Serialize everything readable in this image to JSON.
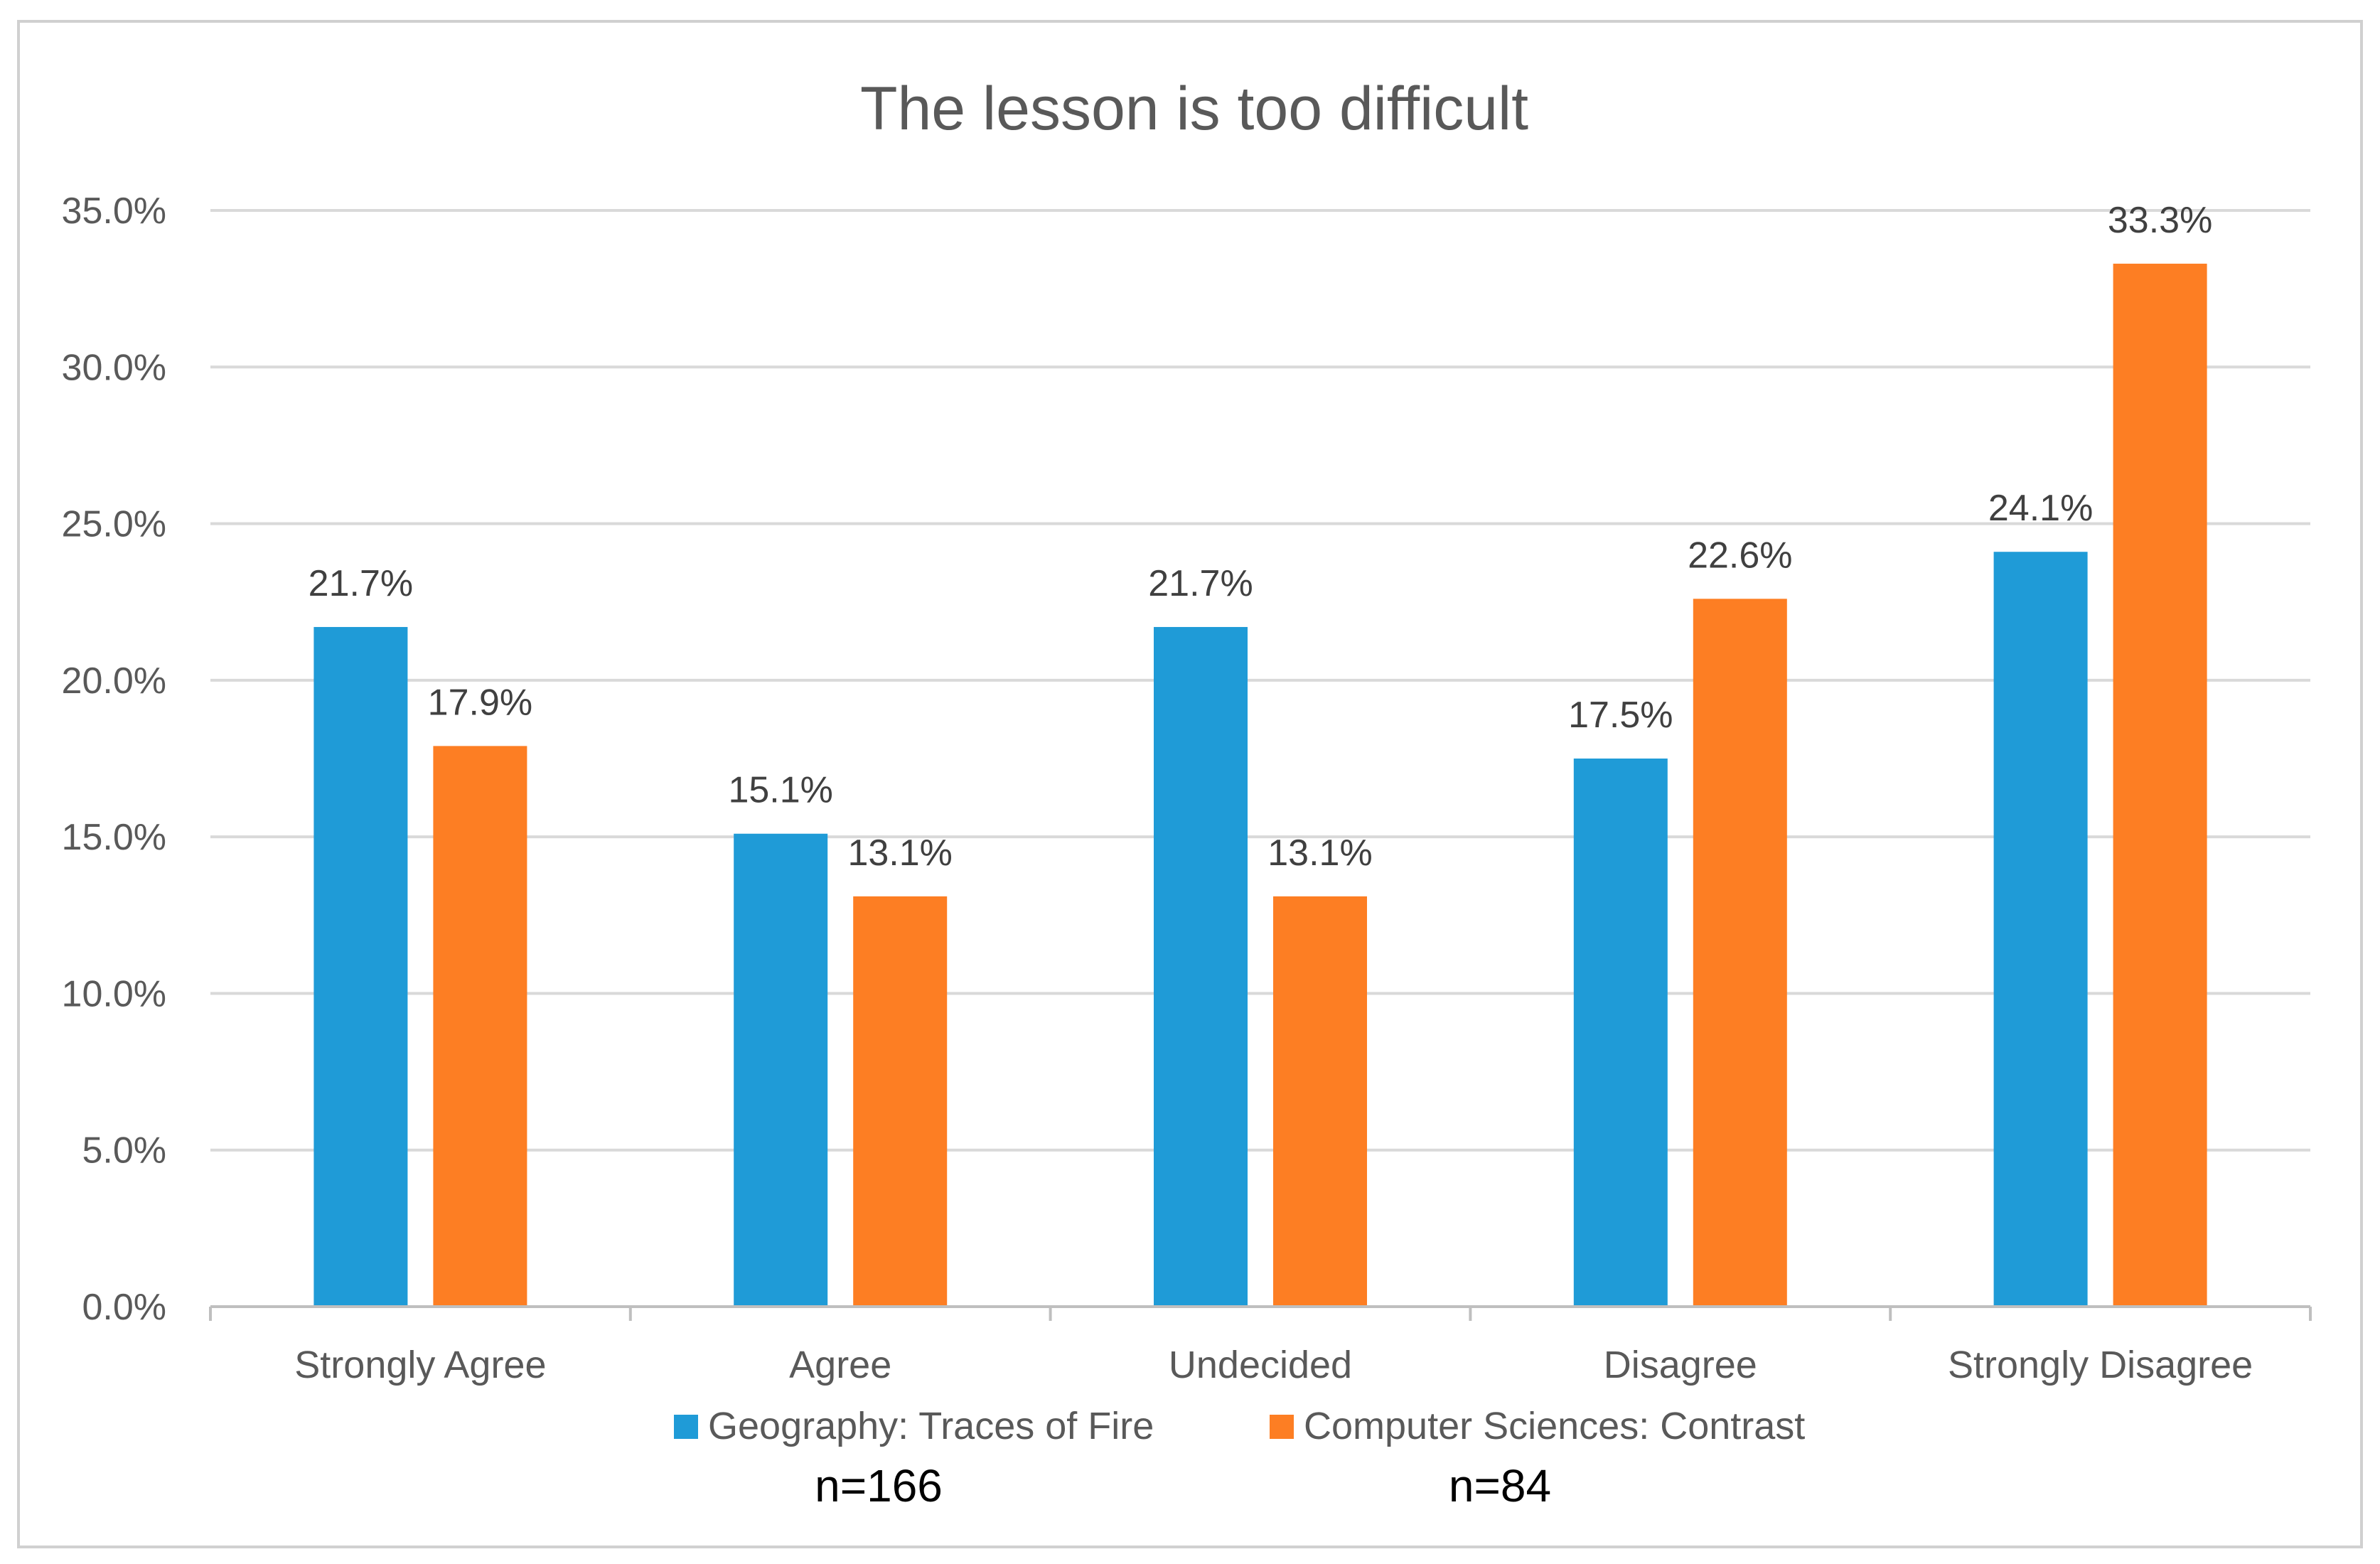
{
  "chart_data": {
    "type": "bar",
    "title": "The lesson is too difficult",
    "categories": [
      "Strongly Agree",
      "Agree",
      "Undecided",
      "Disagree",
      "Strongly Disagree"
    ],
    "series": [
      {
        "name": "Geography: Traces of Fire",
        "color": "#1f9bd7",
        "values": [
          21.7,
          15.1,
          21.7,
          17.5,
          24.1
        ],
        "labels": [
          "21.7%",
          "15.1%",
          "21.7%",
          "17.5%",
          "24.1%"
        ],
        "n_label": "n=166"
      },
      {
        "name": "Computer Sciences: Contrast",
        "color": "#fd7e23",
        "values": [
          17.9,
          13.1,
          13.1,
          22.6,
          33.3
        ],
        "labels": [
          "17.9%",
          "13.1%",
          "13.1%",
          "22.6%",
          "33.3%"
        ],
        "n_label": "n=84"
      }
    ],
    "ylim": [
      0,
      35
    ],
    "yticks": [
      0,
      5,
      10,
      15,
      20,
      25,
      30,
      35
    ],
    "ytick_labels": [
      "0.0%",
      "5.0%",
      "10.0%",
      "15.0%",
      "20.0%",
      "25.0%",
      "30.0%",
      "35.0%"
    ],
    "xlabel": "",
    "ylabel": "",
    "grid": true,
    "legend_position": "bottom"
  }
}
